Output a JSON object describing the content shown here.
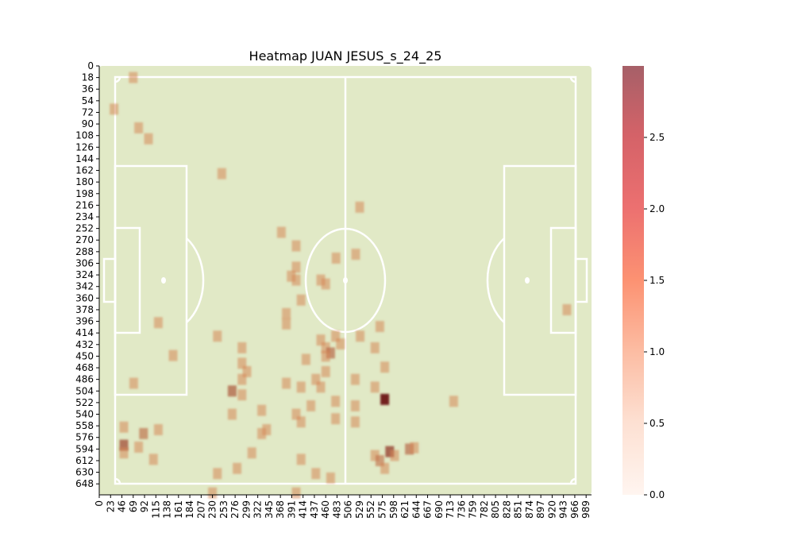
{
  "chart_data": {
    "type": "heatmap",
    "title": "Heatmap JUAN JESUS_s_24_25",
    "xlabel": "",
    "ylabel": "",
    "x_ticks": [
      "0",
      "23",
      "46",
      "69",
      "92",
      "115",
      "138",
      "161",
      "184",
      "207",
      "230",
      "253",
      "276",
      "299",
      "322",
      "345",
      "368",
      "391",
      "414",
      "437",
      "460",
      "483",
      "506",
      "529",
      "552",
      "575",
      "598",
      "621",
      "644",
      "667",
      "690",
      "713",
      "736",
      "759",
      "782",
      "805",
      "828",
      "851",
      "874",
      "897",
      "920",
      "943",
      "966",
      "989"
    ],
    "y_ticks": [
      "0",
      "18",
      "36",
      "54",
      "72",
      "90",
      "108",
      "126",
      "144",
      "162",
      "180",
      "198",
      "216",
      "234",
      "252",
      "270",
      "288",
      "306",
      "324",
      "342",
      "360",
      "378",
      "396",
      "414",
      "432",
      "450",
      "468",
      "486",
      "504",
      "522",
      "540",
      "558",
      "576",
      "594",
      "612",
      "630",
      "648"
    ],
    "xlim": [
      0,
      1000
    ],
    "ylim": [
      0,
      665
    ],
    "colorbar": {
      "min": 0,
      "max": 3.0,
      "ticks": [
        "0.0",
        "0.5",
        "1.0",
        "1.5",
        "2.0",
        "2.5"
      ]
    },
    "colors": {
      "pitch": "#e1e9c6",
      "lines": "#ffffff",
      "cmap_low": "#fff5f0",
      "cmap_mid": "#fb6a4a",
      "cmap_high": "#67000d"
    },
    "points": [
      {
        "x": 69,
        "y": 18,
        "v": 1
      },
      {
        "x": 30,
        "y": 67,
        "v": 1
      },
      {
        "x": 80,
        "y": 96,
        "v": 1
      },
      {
        "x": 100,
        "y": 113,
        "v": 1
      },
      {
        "x": 249,
        "y": 167,
        "v": 1
      },
      {
        "x": 529,
        "y": 219,
        "v": 1
      },
      {
        "x": 370,
        "y": 258,
        "v": 1
      },
      {
        "x": 400,
        "y": 279,
        "v": 1
      },
      {
        "x": 521,
        "y": 292,
        "v": 1
      },
      {
        "x": 481,
        "y": 298,
        "v": 1
      },
      {
        "x": 400,
        "y": 312,
        "v": 1
      },
      {
        "x": 390,
        "y": 326,
        "v": 1
      },
      {
        "x": 400,
        "y": 332,
        "v": 1
      },
      {
        "x": 450,
        "y": 332,
        "v": 1
      },
      {
        "x": 460,
        "y": 338,
        "v": 1
      },
      {
        "x": 410,
        "y": 363,
        "v": 1
      },
      {
        "x": 950,
        "y": 378,
        "v": 1
      },
      {
        "x": 380,
        "y": 384,
        "v": 1
      },
      {
        "x": 380,
        "y": 400,
        "v": 1
      },
      {
        "x": 120,
        "y": 398,
        "v": 1
      },
      {
        "x": 570,
        "y": 404,
        "v": 1
      },
      {
        "x": 240,
        "y": 419,
        "v": 1
      },
      {
        "x": 530,
        "y": 419,
        "v": 1
      },
      {
        "x": 480,
        "y": 419,
        "v": 1
      },
      {
        "x": 450,
        "y": 425,
        "v": 1
      },
      {
        "x": 490,
        "y": 431,
        "v": 1
      },
      {
        "x": 460,
        "y": 437,
        "v": 1
      },
      {
        "x": 290,
        "y": 437,
        "v": 1
      },
      {
        "x": 560,
        "y": 437,
        "v": 1
      },
      {
        "x": 470,
        "y": 445,
        "v": 1.6
      },
      {
        "x": 460,
        "y": 450,
        "v": 1
      },
      {
        "x": 150,
        "y": 449,
        "v": 1
      },
      {
        "x": 420,
        "y": 455,
        "v": 1
      },
      {
        "x": 290,
        "y": 461,
        "v": 1
      },
      {
        "x": 300,
        "y": 474,
        "v": 1
      },
      {
        "x": 580,
        "y": 467,
        "v": 1
      },
      {
        "x": 460,
        "y": 474,
        "v": 1
      },
      {
        "x": 440,
        "y": 486,
        "v": 1
      },
      {
        "x": 290,
        "y": 486,
        "v": 1
      },
      {
        "x": 520,
        "y": 486,
        "v": 1
      },
      {
        "x": 70,
        "y": 492,
        "v": 1
      },
      {
        "x": 380,
        "y": 492,
        "v": 1
      },
      {
        "x": 410,
        "y": 498,
        "v": 1
      },
      {
        "x": 450,
        "y": 498,
        "v": 1
      },
      {
        "x": 560,
        "y": 498,
        "v": 1
      },
      {
        "x": 270,
        "y": 504,
        "v": 1.8
      },
      {
        "x": 290,
        "y": 510,
        "v": 1
      },
      {
        "x": 580,
        "y": 517,
        "v": 3.0
      },
      {
        "x": 720,
        "y": 520,
        "v": 1
      },
      {
        "x": 480,
        "y": 520,
        "v": 1
      },
      {
        "x": 430,
        "y": 527,
        "v": 1
      },
      {
        "x": 520,
        "y": 527,
        "v": 1
      },
      {
        "x": 330,
        "y": 534,
        "v": 1
      },
      {
        "x": 270,
        "y": 540,
        "v": 1
      },
      {
        "x": 400,
        "y": 540,
        "v": 1
      },
      {
        "x": 480,
        "y": 547,
        "v": 1
      },
      {
        "x": 410,
        "y": 552,
        "v": 1
      },
      {
        "x": 520,
        "y": 552,
        "v": 1
      },
      {
        "x": 50,
        "y": 560,
        "v": 1
      },
      {
        "x": 340,
        "y": 564,
        "v": 1
      },
      {
        "x": 330,
        "y": 570,
        "v": 1
      },
      {
        "x": 90,
        "y": 570,
        "v": 1.5
      },
      {
        "x": 120,
        "y": 564,
        "v": 1
      },
      {
        "x": 50,
        "y": 588,
        "v": 2.0
      },
      {
        "x": 50,
        "y": 600,
        "v": 1
      },
      {
        "x": 80,
        "y": 591,
        "v": 1
      },
      {
        "x": 630,
        "y": 594,
        "v": 1.6
      },
      {
        "x": 640,
        "y": 592,
        "v": 1
      },
      {
        "x": 590,
        "y": 598,
        "v": 2.2
      },
      {
        "x": 600,
        "y": 604,
        "v": 1
      },
      {
        "x": 560,
        "y": 604,
        "v": 1
      },
      {
        "x": 310,
        "y": 600,
        "v": 1
      },
      {
        "x": 570,
        "y": 612,
        "v": 1.4
      },
      {
        "x": 110,
        "y": 610,
        "v": 1
      },
      {
        "x": 410,
        "y": 610,
        "v": 1
      },
      {
        "x": 580,
        "y": 624,
        "v": 1
      },
      {
        "x": 280,
        "y": 624,
        "v": 1
      },
      {
        "x": 240,
        "y": 632,
        "v": 1
      },
      {
        "x": 440,
        "y": 632,
        "v": 1
      },
      {
        "x": 470,
        "y": 639,
        "v": 1
      },
      {
        "x": 230,
        "y": 662,
        "v": 1
      },
      {
        "x": 400,
        "y": 662,
        "v": 1
      }
    ]
  }
}
